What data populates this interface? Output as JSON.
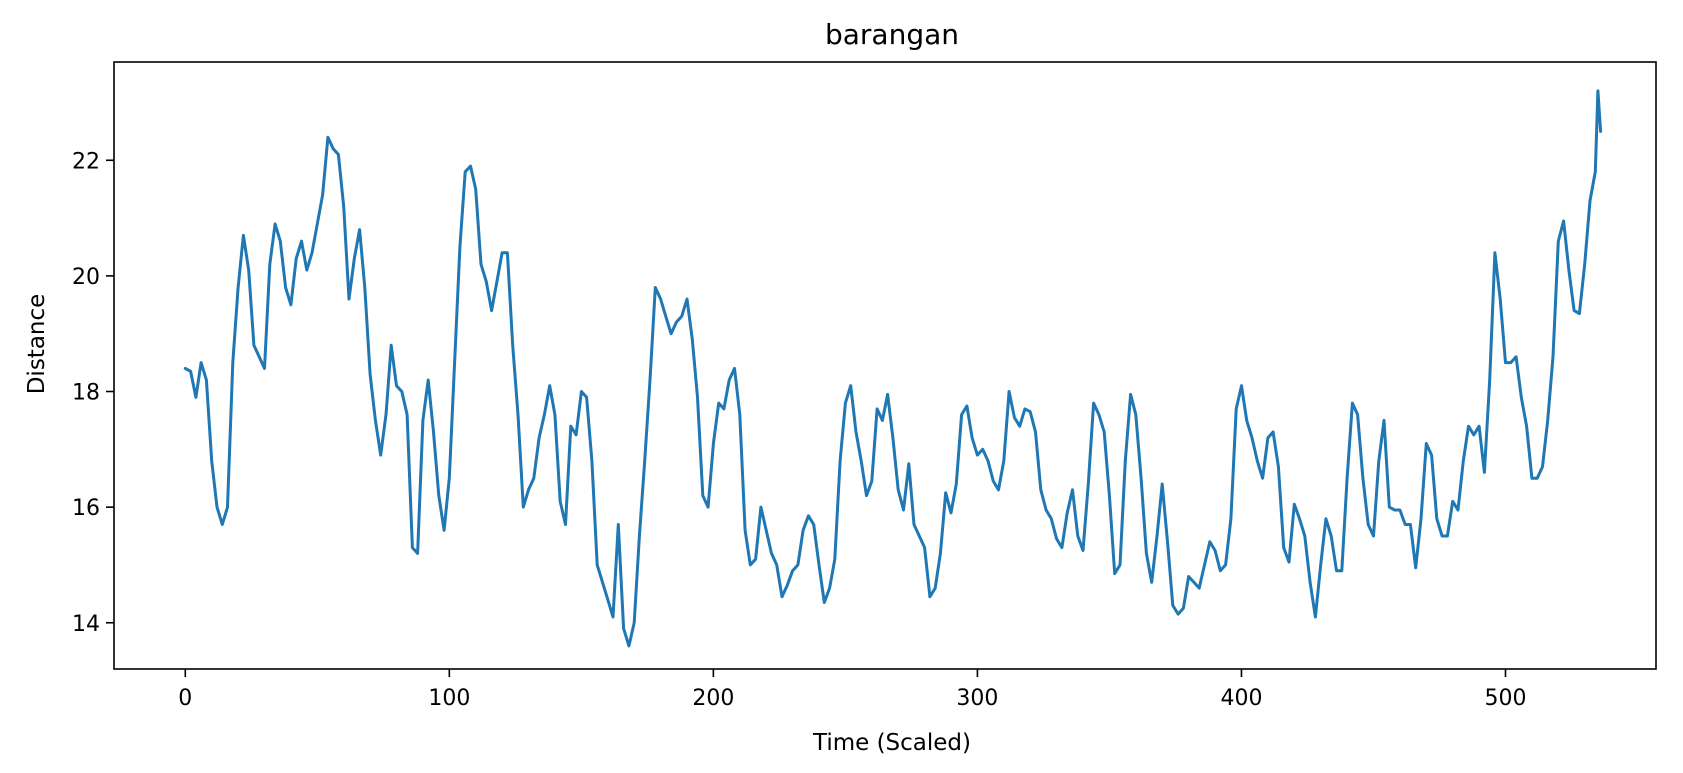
{
  "chart_data": {
    "type": "line",
    "title": "barangan",
    "xlabel": "Time (Scaled)",
    "ylabel": "Distance",
    "xlim": [
      -27,
      557
    ],
    "ylim": [
      13.2,
      23.7
    ],
    "xticks": [
      0,
      100,
      200,
      300,
      400,
      500
    ],
    "yticks": [
      14,
      16,
      18,
      20,
      22
    ],
    "grid": false,
    "line_color": "#1f77b4",
    "series": [
      {
        "values": [
          [
            0,
            18.4
          ],
          [
            2,
            18.35
          ],
          [
            4,
            17.9
          ],
          [
            6,
            18.5
          ],
          [
            8,
            18.2
          ],
          [
            10,
            16.8
          ],
          [
            12,
            16.0
          ],
          [
            14,
            15.7
          ],
          [
            16,
            16.0
          ],
          [
            18,
            18.5
          ],
          [
            20,
            19.8
          ],
          [
            22,
            20.7
          ],
          [
            24,
            20.1
          ],
          [
            26,
            18.8
          ],
          [
            28,
            18.6
          ],
          [
            30,
            18.4
          ],
          [
            32,
            20.2
          ],
          [
            34,
            20.9
          ],
          [
            36,
            20.6
          ],
          [
            38,
            19.8
          ],
          [
            40,
            19.5
          ],
          [
            42,
            20.3
          ],
          [
            44,
            20.6
          ],
          [
            46,
            20.1
          ],
          [
            48,
            20.4
          ],
          [
            50,
            20.9
          ],
          [
            52,
            21.4
          ],
          [
            54,
            22.4
          ],
          [
            56,
            22.2
          ],
          [
            58,
            22.1
          ],
          [
            60,
            21.2
          ],
          [
            62,
            19.6
          ],
          [
            64,
            20.3
          ],
          [
            66,
            20.8
          ],
          [
            68,
            19.8
          ],
          [
            70,
            18.3
          ],
          [
            72,
            17.5
          ],
          [
            74,
            16.9
          ],
          [
            76,
            17.6
          ],
          [
            78,
            18.8
          ],
          [
            80,
            18.1
          ],
          [
            82,
            18.0
          ],
          [
            84,
            17.6
          ],
          [
            86,
            15.3
          ],
          [
            88,
            15.2
          ],
          [
            90,
            17.5
          ],
          [
            92,
            18.2
          ],
          [
            94,
            17.3
          ],
          [
            96,
            16.2
          ],
          [
            98,
            15.6
          ],
          [
            100,
            16.5
          ],
          [
            102,
            18.5
          ],
          [
            104,
            20.5
          ],
          [
            106,
            21.8
          ],
          [
            108,
            21.9
          ],
          [
            110,
            21.5
          ],
          [
            112,
            20.2
          ],
          [
            114,
            19.9
          ],
          [
            116,
            19.4
          ],
          [
            118,
            19.9
          ],
          [
            120,
            20.4
          ],
          [
            122,
            20.4
          ],
          [
            124,
            18.8
          ],
          [
            126,
            17.6
          ],
          [
            128,
            16.0
          ],
          [
            130,
            16.3
          ],
          [
            132,
            16.5
          ],
          [
            134,
            17.2
          ],
          [
            136,
            17.6
          ],
          [
            138,
            18.1
          ],
          [
            140,
            17.6
          ],
          [
            142,
            16.1
          ],
          [
            144,
            15.7
          ],
          [
            146,
            17.4
          ],
          [
            148,
            17.25
          ],
          [
            150,
            18.0
          ],
          [
            152,
            17.9
          ],
          [
            154,
            16.8
          ],
          [
            156,
            15.0
          ],
          [
            158,
            14.7
          ],
          [
            160,
            14.4
          ],
          [
            162,
            14.1
          ],
          [
            164,
            15.7
          ],
          [
            166,
            13.9
          ],
          [
            168,
            13.6
          ],
          [
            170,
            14.0
          ],
          [
            172,
            15.5
          ],
          [
            174,
            16.8
          ],
          [
            176,
            18.2
          ],
          [
            178,
            19.8
          ],
          [
            180,
            19.6
          ],
          [
            182,
            19.3
          ],
          [
            184,
            19.0
          ],
          [
            186,
            19.2
          ],
          [
            188,
            19.3
          ],
          [
            190,
            19.6
          ],
          [
            192,
            18.9
          ],
          [
            194,
            17.9
          ],
          [
            196,
            16.2
          ],
          [
            198,
            16.0
          ],
          [
            200,
            17.1
          ],
          [
            202,
            17.8
          ],
          [
            204,
            17.7
          ],
          [
            206,
            18.2
          ],
          [
            208,
            18.4
          ],
          [
            210,
            17.6
          ],
          [
            212,
            15.6
          ],
          [
            214,
            15.0
          ],
          [
            216,
            15.1
          ],
          [
            218,
            16.0
          ],
          [
            220,
            15.6
          ],
          [
            222,
            15.2
          ],
          [
            224,
            15.0
          ],
          [
            226,
            14.45
          ],
          [
            228,
            14.65
          ],
          [
            230,
            14.9
          ],
          [
            232,
            15.0
          ],
          [
            234,
            15.6
          ],
          [
            236,
            15.85
          ],
          [
            238,
            15.7
          ],
          [
            240,
            15.0
          ],
          [
            242,
            14.35
          ],
          [
            244,
            14.6
          ],
          [
            246,
            15.1
          ],
          [
            248,
            16.8
          ],
          [
            250,
            17.8
          ],
          [
            252,
            18.1
          ],
          [
            254,
            17.3
          ],
          [
            256,
            16.8
          ],
          [
            258,
            16.2
          ],
          [
            260,
            16.45
          ],
          [
            262,
            17.7
          ],
          [
            264,
            17.5
          ],
          [
            266,
            17.95
          ],
          [
            268,
            17.2
          ],
          [
            270,
            16.3
          ],
          [
            272,
            15.95
          ],
          [
            274,
            16.75
          ],
          [
            276,
            15.7
          ],
          [
            278,
            15.5
          ],
          [
            280,
            15.3
          ],
          [
            282,
            14.45
          ],
          [
            284,
            14.6
          ],
          [
            286,
            15.2
          ],
          [
            288,
            16.25
          ],
          [
            290,
            15.9
          ],
          [
            292,
            16.4
          ],
          [
            294,
            17.6
          ],
          [
            296,
            17.75
          ],
          [
            298,
            17.2
          ],
          [
            300,
            16.9
          ],
          [
            302,
            17.0
          ],
          [
            304,
            16.8
          ],
          [
            306,
            16.45
          ],
          [
            308,
            16.3
          ],
          [
            310,
            16.8
          ],
          [
            312,
            18.0
          ],
          [
            314,
            17.55
          ],
          [
            316,
            17.4
          ],
          [
            318,
            17.7
          ],
          [
            320,
            17.65
          ],
          [
            322,
            17.3
          ],
          [
            324,
            16.3
          ],
          [
            326,
            15.95
          ],
          [
            328,
            15.8
          ],
          [
            330,
            15.45
          ],
          [
            332,
            15.3
          ],
          [
            334,
            15.9
          ],
          [
            336,
            16.3
          ],
          [
            338,
            15.5
          ],
          [
            340,
            15.25
          ],
          [
            342,
            16.4
          ],
          [
            344,
            17.8
          ],
          [
            346,
            17.6
          ],
          [
            348,
            17.3
          ],
          [
            350,
            16.2
          ],
          [
            352,
            14.85
          ],
          [
            354,
            15.0
          ],
          [
            356,
            16.8
          ],
          [
            358,
            17.95
          ],
          [
            360,
            17.6
          ],
          [
            362,
            16.5
          ],
          [
            364,
            15.2
          ],
          [
            366,
            14.7
          ],
          [
            368,
            15.5
          ],
          [
            370,
            16.4
          ],
          [
            372,
            15.4
          ],
          [
            374,
            14.3
          ],
          [
            376,
            14.15
          ],
          [
            378,
            14.25
          ],
          [
            380,
            14.8
          ],
          [
            382,
            14.7
          ],
          [
            384,
            14.6
          ],
          [
            386,
            15.0
          ],
          [
            388,
            15.4
          ],
          [
            390,
            15.25
          ],
          [
            392,
            14.9
          ],
          [
            394,
            15.0
          ],
          [
            396,
            15.8
          ],
          [
            398,
            17.7
          ],
          [
            400,
            18.1
          ],
          [
            402,
            17.5
          ],
          [
            404,
            17.2
          ],
          [
            406,
            16.8
          ],
          [
            408,
            16.5
          ],
          [
            410,
            17.2
          ],
          [
            412,
            17.3
          ],
          [
            414,
            16.7
          ],
          [
            416,
            15.3
          ],
          [
            418,
            15.05
          ],
          [
            420,
            16.05
          ],
          [
            422,
            15.8
          ],
          [
            424,
            15.5
          ],
          [
            426,
            14.7
          ],
          [
            428,
            14.1
          ],
          [
            430,
            15.0
          ],
          [
            432,
            15.8
          ],
          [
            434,
            15.5
          ],
          [
            436,
            14.9
          ],
          [
            438,
            14.9
          ],
          [
            440,
            16.5
          ],
          [
            442,
            17.8
          ],
          [
            444,
            17.6
          ],
          [
            446,
            16.5
          ],
          [
            448,
            15.7
          ],
          [
            450,
            15.5
          ],
          [
            452,
            16.8
          ],
          [
            454,
            17.5
          ],
          [
            456,
            16.0
          ],
          [
            458,
            15.95
          ],
          [
            460,
            15.95
          ],
          [
            462,
            15.7
          ],
          [
            464,
            15.7
          ],
          [
            466,
            14.95
          ],
          [
            468,
            15.8
          ],
          [
            470,
            17.1
          ],
          [
            472,
            16.9
          ],
          [
            474,
            15.8
          ],
          [
            476,
            15.5
          ],
          [
            478,
            15.5
          ],
          [
            480,
            16.1
          ],
          [
            482,
            15.95
          ],
          [
            484,
            16.8
          ],
          [
            486,
            17.4
          ],
          [
            488,
            17.25
          ],
          [
            490,
            17.4
          ],
          [
            492,
            16.6
          ],
          [
            494,
            18.2
          ],
          [
            496,
            20.4
          ],
          [
            498,
            19.6
          ],
          [
            500,
            18.5
          ],
          [
            502,
            18.5
          ],
          [
            504,
            18.6
          ],
          [
            506,
            17.9
          ],
          [
            508,
            17.4
          ],
          [
            510,
            16.5
          ],
          [
            512,
            16.5
          ],
          [
            514,
            16.7
          ],
          [
            516,
            17.5
          ],
          [
            518,
            18.6
          ],
          [
            520,
            20.6
          ],
          [
            522,
            20.95
          ],
          [
            524,
            20.1
          ],
          [
            526,
            19.4
          ],
          [
            528,
            19.35
          ],
          [
            530,
            20.2
          ],
          [
            532,
            21.3
          ],
          [
            534,
            21.8
          ],
          [
            535,
            23.2
          ],
          [
            536,
            22.5
          ]
        ]
      }
    ]
  }
}
